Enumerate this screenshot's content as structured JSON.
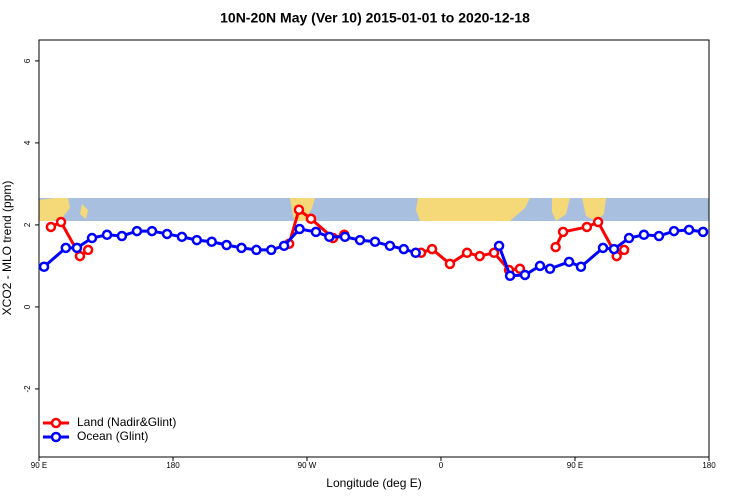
{
  "chart_data": {
    "type": "line",
    "title": "10N-20N May (Ver 10)   2015-01-01 to 2020-12-18",
    "x_label": "Longitude (deg E)",
    "y_label": "XCO2 - MLO trend (ppm)",
    "xlim": [
      90,
      540
    ],
    "ylim": [
      -3.66,
      6.51
    ],
    "xticks": [
      {
        "value": 90,
        "label": "90 E"
      },
      180,
      {
        "value": 270,
        "label": "90 W"
      },
      {
        "value": 360,
        "label": "0"
      },
      {
        "value": 450,
        "label": "90 E"
      },
      {
        "value": 540,
        "label": "180"
      }
    ],
    "yticks": [
      -2,
      0,
      2,
      4,
      6
    ],
    "legend": "bottom-left",
    "series": [
      {
        "name": "Land (Nadir&Glint)",
        "color": "#ff0000",
        "x": [
          98,
          104.8,
          117.5,
          123,
          null,
          258,
          264.6,
          272.7,
          287.5,
          295,
          null,
          346.6,
          354,
          366,
          377.5,
          386,
          395.6,
          405.7,
          413,
          null,
          437,
          442,
          458,
          465.5,
          478,
          483
        ],
        "values": [
          1.95,
          2.07,
          1.24,
          1.39,
          null,
          1.54,
          2.37,
          2.15,
          1.68,
          1.76,
          null,
          1.32,
          1.41,
          1.05,
          1.32,
          1.24,
          1.32,
          0.9,
          0.93,
          null,
          1.46,
          1.83,
          1.95,
          2.07,
          1.24,
          1.39
        ]
      },
      {
        "name": "Ocean (Glint)",
        "color": "#0000ff",
        "x": [
          93.4,
          108,
          115.5,
          125.6,
          135.7,
          145.7,
          155.8,
          165.9,
          176,
          186,
          196,
          206,
          216,
          226,
          236,
          246,
          254.6,
          265,
          276,
          285,
          295.5,
          305.6,
          315.7,
          325.7,
          335,
          343,
          null,
          399,
          406.4,
          416.4,
          426.5,
          433.2,
          446,
          454,
          468.8,
          476.2,
          486.3,
          496.3,
          506.4,
          516.5,
          526.6,
          536
        ],
        "values": [
          0.98,
          1.44,
          1.44,
          1.68,
          1.76,
          1.73,
          1.85,
          1.85,
          1.78,
          1.71,
          1.63,
          1.59,
          1.51,
          1.44,
          1.39,
          1.39,
          1.49,
          1.9,
          1.83,
          1.71,
          1.71,
          1.63,
          1.59,
          1.49,
          1.41,
          1.32,
          null,
          1.49,
          0.76,
          0.78,
          1.0,
          0.93,
          1.1,
          0.98,
          1.44,
          1.41,
          1.68,
          1.76,
          1.73,
          1.85,
          1.88,
          1.83
        ]
      }
    ]
  }
}
